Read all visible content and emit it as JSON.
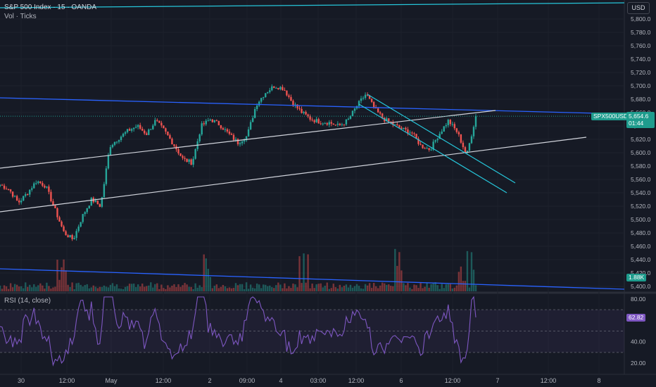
{
  "header": {
    "symbol_line": "S&P 500 Index · 15 · OANDA",
    "volume_line": "Vol · Ticks",
    "currency_button": "USD"
  },
  "price_axis": {
    "ticks": [
      "5,800.0",
      "5,780.0",
      "5,760.0",
      "5,740.0",
      "5,720.0",
      "5,700.0",
      "5,680.0",
      "5,660.0",
      "5,640.0",
      "5,620.0",
      "5,600.0",
      "5,580.0",
      "5,560.0",
      "5,540.0",
      "5,520.0",
      "5,500.0",
      "5,480.0",
      "5,460.0",
      "5,440.0",
      "5,420.0",
      "5,400.0"
    ],
    "last_symbol": "SPX500USD",
    "last_price": "5,654.6",
    "countdown": "01:44",
    "volume_value": "1.88K",
    "last_color": "#1e9c8d"
  },
  "rsi": {
    "title": "RSI (14, close)",
    "value": "62.82",
    "ticks": [
      "80.00",
      "40.00",
      "20.00"
    ],
    "color": "#7e57c2"
  },
  "time_axis": {
    "labels": [
      "30",
      "12:00",
      "May",
      "12:00",
      "2",
      "09:00",
      "4",
      "03:00",
      "12:00",
      "6",
      "12:00",
      "7",
      "12:00",
      "8"
    ]
  },
  "colors": {
    "background": "#161a25",
    "up": "#26a69a",
    "down": "#ef5350",
    "channel_blue": "#2962ff",
    "channel_white": "#d1d4dc",
    "channel_cyan": "#26c6da"
  },
  "chart_data": {
    "type": "candlestick",
    "instrument": "S&P 500 Index",
    "interval": "15",
    "source": "OANDA",
    "y_range": [
      5390,
      5820
    ],
    "last_price": 5654.6,
    "path_keypoints": [
      [
        "Apr 30",
        5552
      ],
      [
        "Apr 30",
        5545
      ],
      [
        "Apr 30",
        5525
      ],
      [
        "Apr 30",
        5540
      ],
      [
        "Apr 30",
        5558
      ],
      [
        "Apr 30",
        5550
      ],
      [
        "Apr 30",
        5515
      ],
      [
        "Apr 30",
        5480
      ],
      [
        "Apr 30",
        5470
      ],
      [
        "Apr 30",
        5505
      ],
      [
        "Apr 30",
        5530
      ],
      [
        "Apr 30 12:00",
        5520
      ],
      [
        "Apr 30 12:00",
        5610
      ],
      [
        "Apr 30 12:00",
        5622
      ],
      [
        "Apr 30 12:00",
        5633
      ],
      [
        "May 1",
        5640
      ],
      [
        "May 1",
        5628
      ],
      [
        "May 1",
        5648
      ],
      [
        "May 1",
        5632
      ],
      [
        "May 1 12:00",
        5612
      ],
      [
        "May 1 12:00",
        5590
      ],
      [
        "May 1 12:00",
        5585
      ],
      [
        "May 1 12:00",
        5640
      ],
      [
        "May 2",
        5650
      ],
      [
        "May 2",
        5642
      ],
      [
        "May 2",
        5628
      ],
      [
        "May 2",
        5615
      ],
      [
        "May 2",
        5625
      ],
      [
        "May 2 09:00",
        5672
      ],
      [
        "May 2 09:00",
        5690
      ],
      [
        "May 2 09:00",
        5700
      ],
      [
        "May 2 09:00",
        5696
      ],
      [
        "May 2 09:00",
        5674
      ],
      [
        "May 3",
        5660
      ],
      [
        "May 3",
        5650
      ],
      [
        "May 3 03:00",
        5646
      ],
      [
        "May 3 03:00",
        5645
      ],
      [
        "May 3 03:00",
        5640
      ],
      [
        "May 3 03:00",
        5648
      ],
      [
        "May 3 12:00",
        5670
      ],
      [
        "May 3 12:00",
        5688
      ],
      [
        "May 3 12:00",
        5664
      ],
      [
        "May 3 12:00",
        5650
      ],
      [
        "May 6",
        5642
      ],
      [
        "May 6",
        5635
      ],
      [
        "May 6",
        5630
      ],
      [
        "May 6",
        5610
      ],
      [
        "May 6",
        5605
      ],
      [
        "May 6 12:00",
        5628
      ],
      [
        "May 6 12:00",
        5648
      ],
      [
        "May 6 12:00",
        5630
      ],
      [
        "May 6 12:00",
        5596
      ],
      [
        "May 6 12:00",
        5654.6
      ]
    ],
    "rsi_last": 62.82,
    "rsi_levels": [
      70,
      50,
      30
    ],
    "rsi_range": [
      15,
      85
    ]
  }
}
